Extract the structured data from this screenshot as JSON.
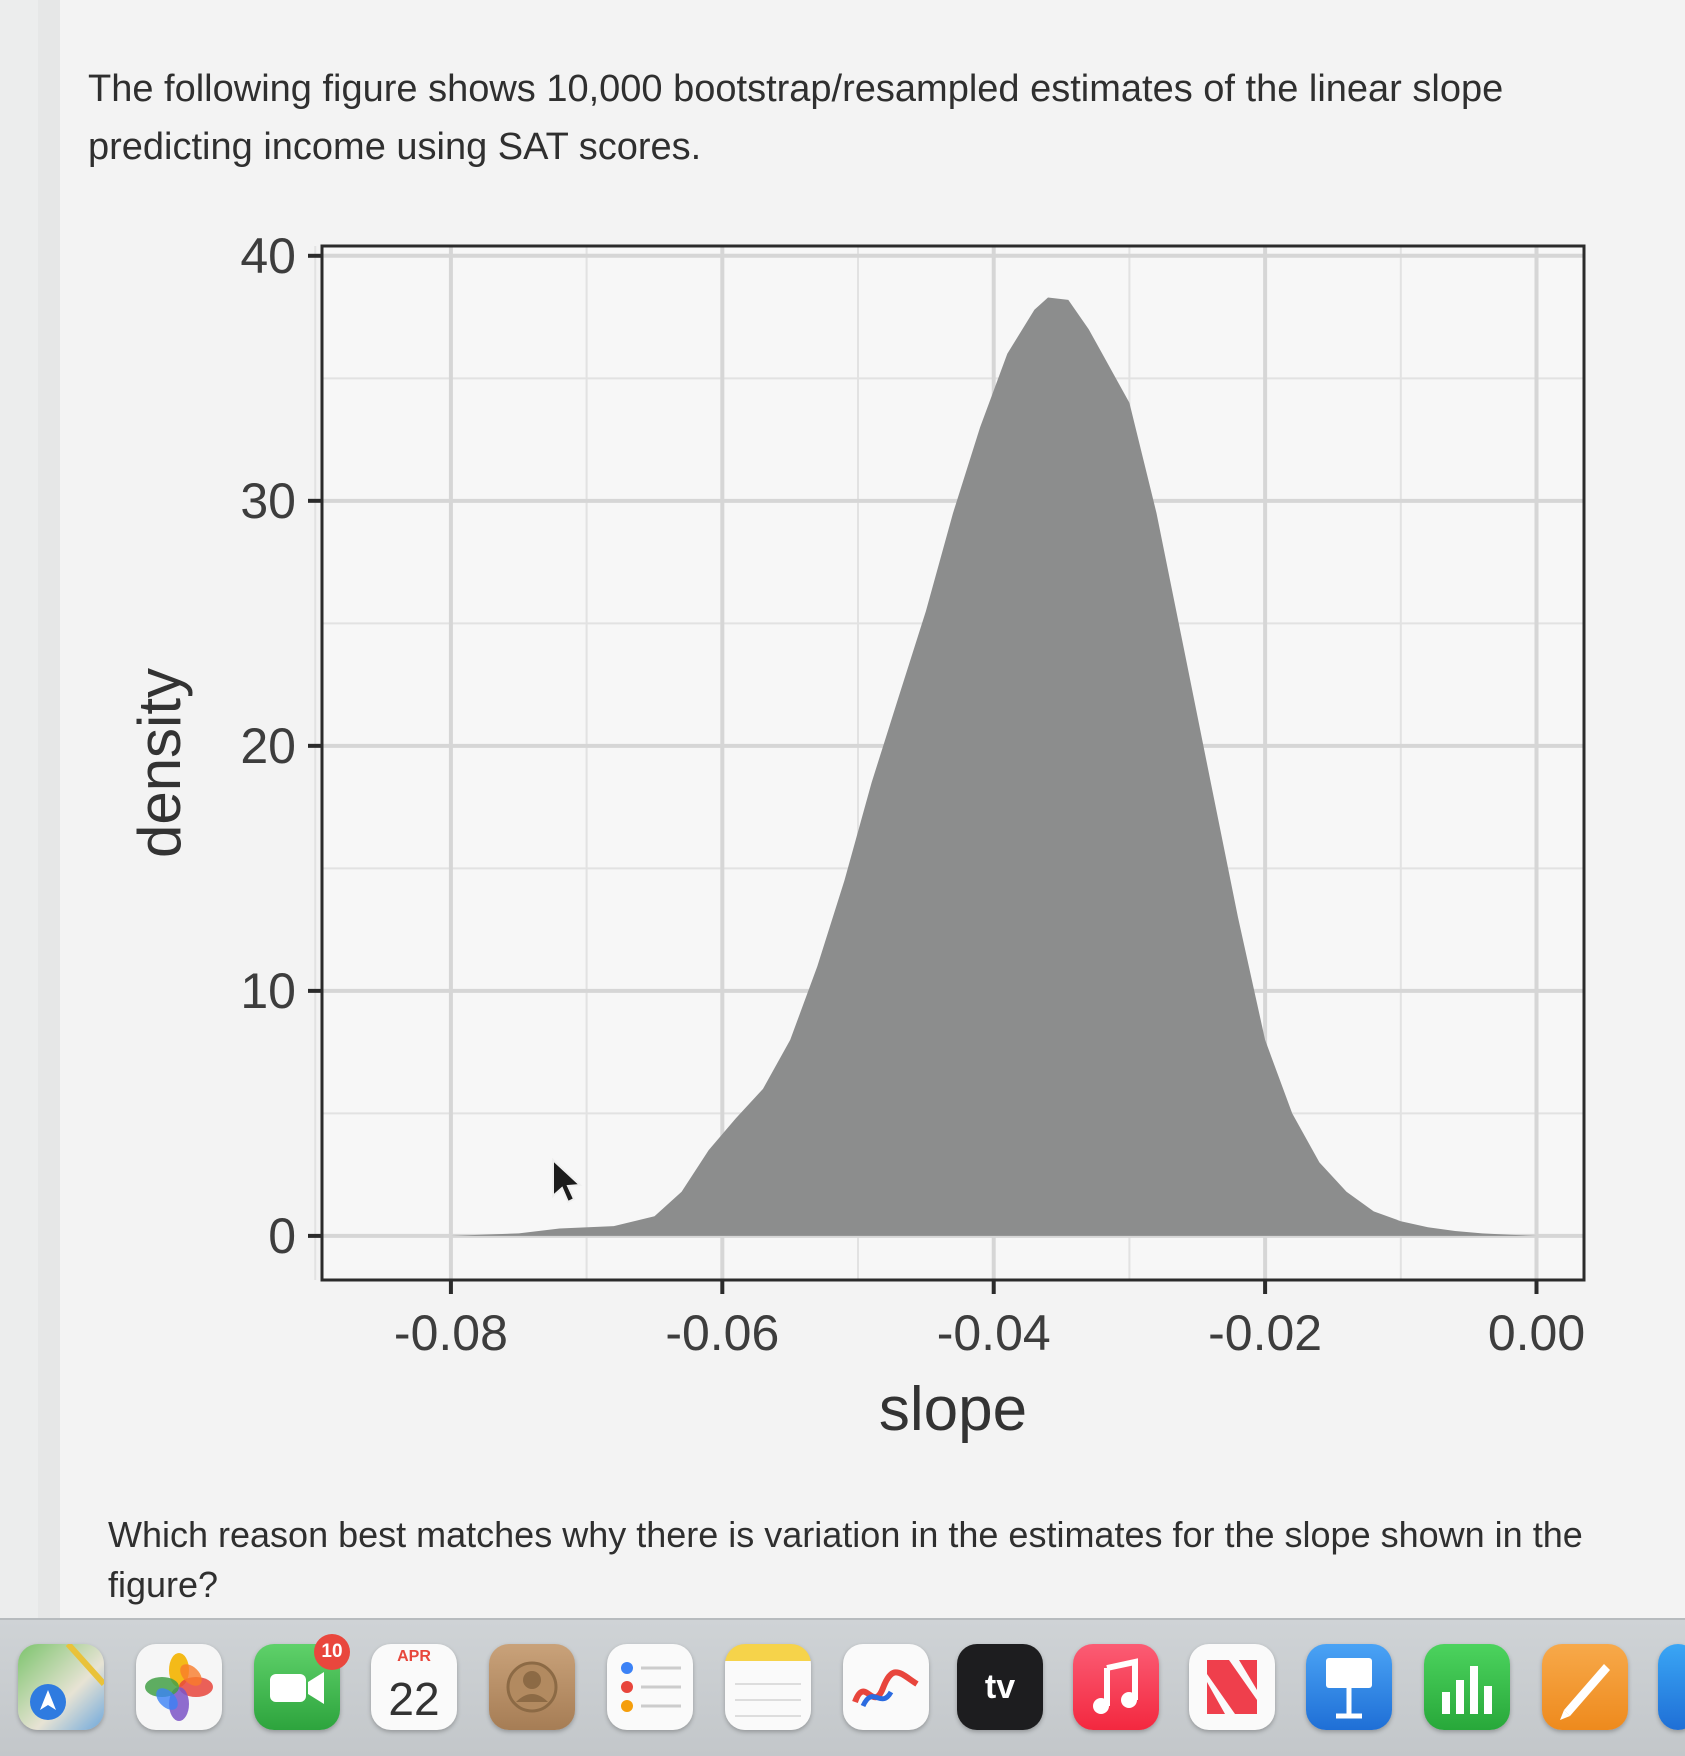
{
  "question": {
    "intro": "The following figure shows 10,000 bootstrap/resampled estimates of the linear slope predicting income using SAT scores.",
    "prompt": "Which reason best matches why there is variation in the estimates for the slope shown in the figure?"
  },
  "chart_data": {
    "type": "area",
    "xlabel": "slope",
    "ylabel": "density",
    "xlim": [
      -0.0895,
      0.0035
    ],
    "ylim": [
      -1.8,
      40.4
    ],
    "x_ticks": [
      -0.08,
      -0.06,
      -0.04,
      -0.02,
      0.0
    ],
    "x_tick_labels": [
      "-0.08",
      "-0.06",
      "-0.04",
      "-0.02",
      "0.00"
    ],
    "y_ticks": [
      0,
      10,
      20,
      30,
      40
    ],
    "y_tick_labels": [
      "0",
      "10",
      "20",
      "30",
      "40"
    ],
    "grid": true,
    "fill_color": "#8c8d8d",
    "series": [
      {
        "x": [
          -0.08,
          -0.075,
          -0.072,
          -0.068,
          -0.065,
          -0.063,
          -0.061,
          -0.059,
          -0.057,
          -0.055,
          -0.053,
          -0.051,
          -0.049,
          -0.047,
          -0.045,
          -0.043,
          -0.041,
          -0.039,
          -0.037,
          -0.036,
          -0.0345,
          -0.033,
          -0.032,
          -0.03,
          -0.028,
          -0.026,
          -0.024,
          -0.022,
          -0.02,
          -0.018,
          -0.016,
          -0.014,
          -0.012,
          -0.01,
          -0.008,
          -0.006,
          -0.004,
          -0.002,
          0.0
        ],
        "y": [
          0.0,
          0.1,
          0.3,
          0.4,
          0.8,
          1.8,
          3.5,
          4.8,
          6.0,
          8.0,
          11.0,
          14.5,
          18.5,
          22.0,
          25.5,
          29.5,
          33.0,
          36.0,
          37.8,
          38.3,
          38.2,
          37.0,
          36.0,
          34.0,
          29.5,
          24.0,
          18.5,
          13.0,
          8.0,
          5.0,
          3.0,
          1.8,
          1.0,
          0.6,
          0.35,
          0.2,
          0.1,
          0.05,
          0.0
        ]
      }
    ]
  },
  "dock": {
    "facetime_badge": "10",
    "calendar_month": "APR",
    "calendar_day": "22",
    "tv_label": "tv"
  }
}
